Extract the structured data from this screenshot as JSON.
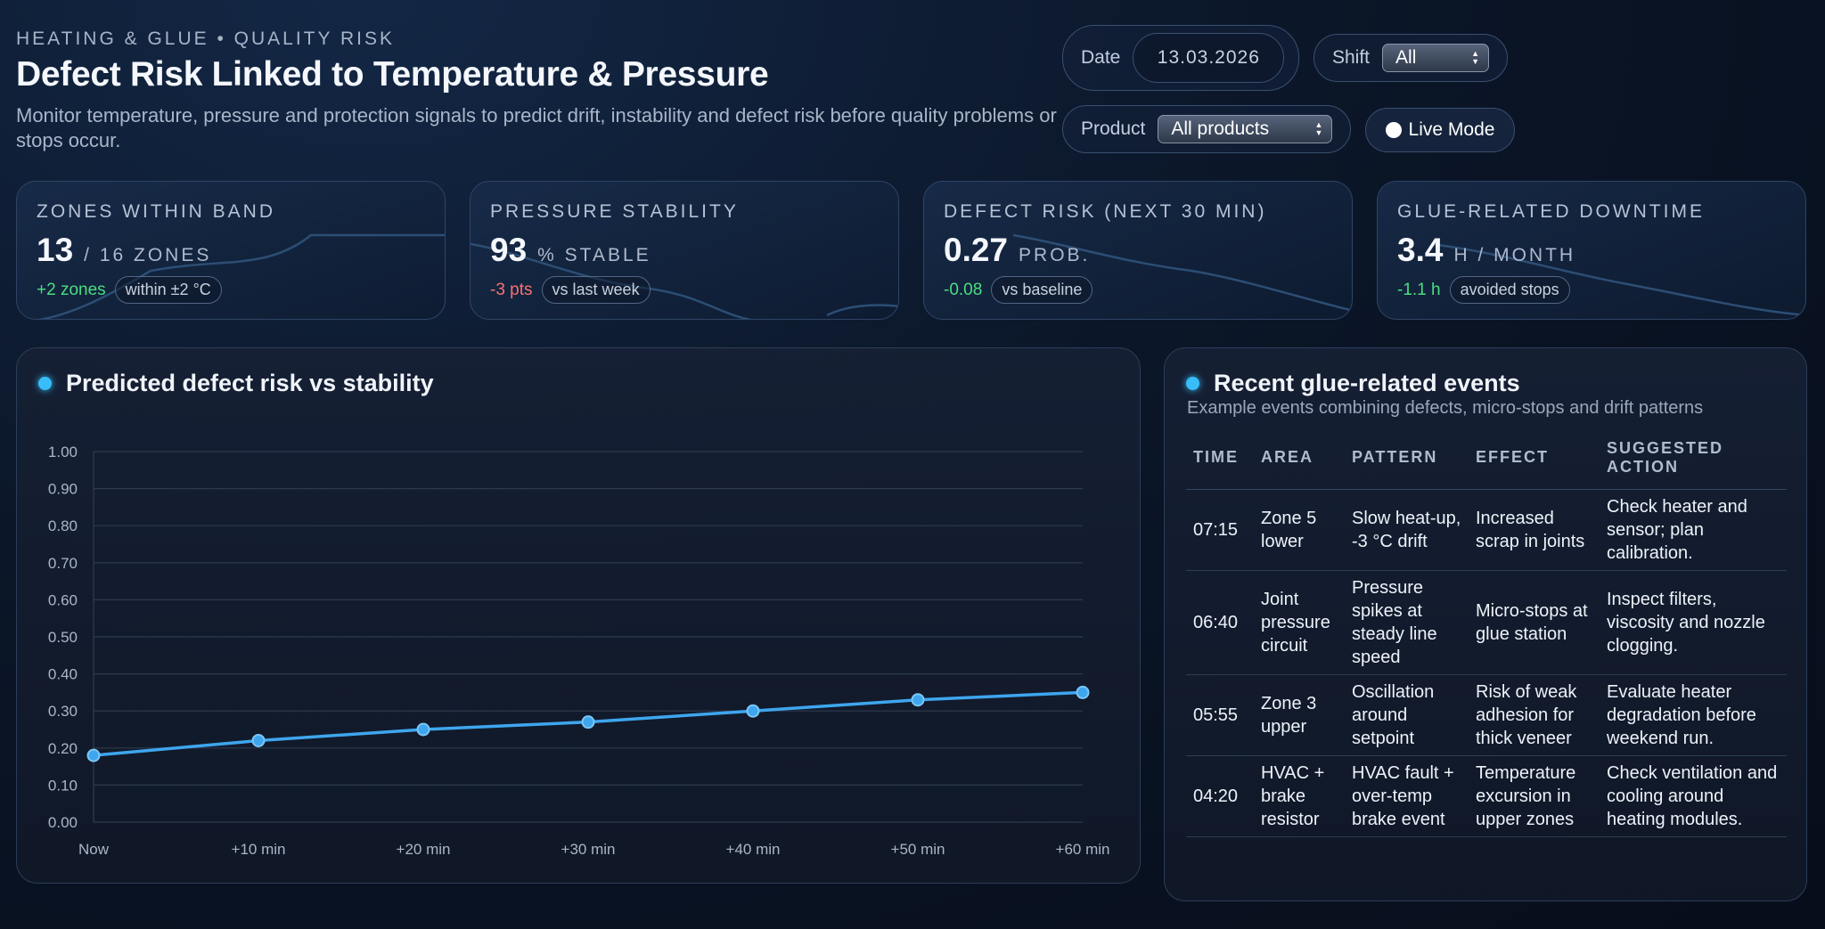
{
  "header": {
    "eyebrow": "HEATING & GLUE • QUALITY RISK",
    "title": "Defect Risk Linked to Temperature & Pressure",
    "subtitle": "Monitor temperature, pressure and protection signals to predict drift, instability and defect risk before quality problems or stops occur."
  },
  "controls": {
    "date_label": "Date",
    "date_value": "13.03.2026",
    "shift_label": "Shift",
    "shift_value": "All",
    "product_label": "Product",
    "product_value": "All products",
    "live_label": "Live Mode"
  },
  "kpis": [
    {
      "label": "ZONES WITHIN BAND",
      "value": "13",
      "unit": "/ 16 ZONES",
      "delta": "+2 zones",
      "delta_tone": "positive",
      "context": "within ±2 °C"
    },
    {
      "label": "PRESSURE STABILITY",
      "value": "93",
      "unit": "% STABLE",
      "delta": "-3 pts",
      "delta_tone": "negative",
      "context": "vs last week"
    },
    {
      "label": "DEFECT RISK (NEXT 30 MIN)",
      "value": "0.27",
      "unit": "PROB.",
      "delta": "-0.08",
      "delta_tone": "positive",
      "context": "vs baseline"
    },
    {
      "label": "GLUE-RELATED DOWNTIME",
      "value": "3.4",
      "unit": "H / MONTH",
      "delta": "-1.1 h",
      "delta_tone": "positive",
      "context": "avoided stops"
    }
  ],
  "chart_panel": {
    "title": "Predicted defect risk vs stability"
  },
  "chart_data": {
    "type": "line",
    "title": "Predicted defect risk vs stability",
    "categories": [
      "Now",
      "+10 min",
      "+20 min",
      "+30 min",
      "+40 min",
      "+50 min",
      "+60 min"
    ],
    "series": [
      {
        "name": "Predicted defect risk",
        "values": [
          0.18,
          0.22,
          0.25,
          0.27,
          0.3,
          0.33,
          0.35
        ],
        "color": "#3ea6ee"
      }
    ],
    "ylim": [
      0,
      1
    ],
    "yticks": [
      "0.00",
      "0.10",
      "0.20",
      "0.30",
      "0.40",
      "0.50",
      "0.60",
      "0.70",
      "0.80",
      "0.90",
      "1.00"
    ],
    "grid": true,
    "xlabel": "",
    "ylabel": ""
  },
  "events": {
    "title": "Recent glue-related events",
    "subtitle": "Example events combining defects, micro-stops and drift patterns",
    "columns": [
      "TIME",
      "AREA",
      "PATTERN",
      "EFFECT",
      "SUGGESTED ACTION"
    ],
    "rows": [
      [
        "07:15",
        "Zone 5 lower",
        "Slow heat-up, -3 °C drift",
        "Increased scrap in joints",
        "Check heater and sensor; plan calibration."
      ],
      [
        "06:40",
        "Joint pressure circuit",
        "Pressure spikes at steady line speed",
        "Micro-stops at glue station",
        "Inspect filters, viscosity and nozzle clogging."
      ],
      [
        "05:55",
        "Zone 3 upper",
        "Oscillation around setpoint",
        "Risk of weak adhesion for thick veneer",
        "Evaluate heater degradation before weekend run."
      ],
      [
        "04:20",
        "HVAC + brake resistor",
        "HVAC fault + over-temp brake event",
        "Temperature excursion in upper zones",
        "Check ventilation and cooling around heating modules."
      ]
    ]
  },
  "colors": {
    "accent": "#38bdf8",
    "line": "#3ea6ee",
    "positive": "#4ade80",
    "negative": "#f87171"
  }
}
